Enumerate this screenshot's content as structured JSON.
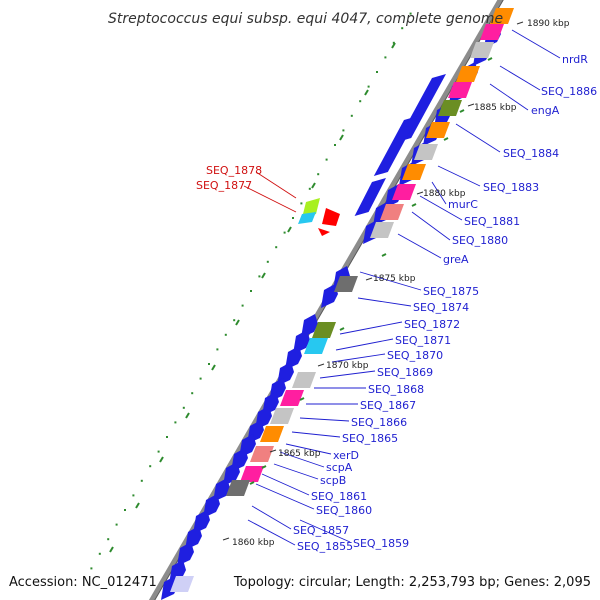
{
  "title": "Streptococcus equi subsp. equi 4047, complete genome",
  "accession": "Accession: NC_012471",
  "summary": "Topology: circular; Length: 2,253,793 bp; Genes: 2,095",
  "colors": {
    "backbone": "#8c8c8c",
    "cds": "#1f1fe0",
    "label_default": "#1f1fd0",
    "label_alt": "#d01010",
    "ruler_dot": "#2e8b2e",
    "orange": "#ff8c00",
    "magenta": "#ff1ea0",
    "gray": "#c4c4c4",
    "olive": "#6b8e23",
    "cyan": "#27c8f0",
    "pink": "#f08080",
    "lime": "#a8f020",
    "red": "#ff0000",
    "darkgray": "#6e6e6e",
    "lavender": "#cfd0f6"
  },
  "kbp_marks": [
    "1890 kbp",
    "1885 kbp",
    "1880 kbp",
    "1875 kbp",
    "1870 kbp",
    "1865 kbp",
    "1860 kbp"
  ],
  "gene_labels": [
    {
      "text": "nrdR",
      "color": "label_default"
    },
    {
      "text": "SEQ_1886",
      "color": "label_default"
    },
    {
      "text": "engA",
      "color": "label_default"
    },
    {
      "text": "SEQ_1884",
      "color": "label_default"
    },
    {
      "text": "SEQ_1883",
      "color": "label_default"
    },
    {
      "text": "murC",
      "color": "label_default"
    },
    {
      "text": "SEQ_1881",
      "color": "label_default"
    },
    {
      "text": "SEQ_1880",
      "color": "label_default"
    },
    {
      "text": "greA",
      "color": "label_default"
    },
    {
      "text": "SEQ_1878",
      "color": "label_alt"
    },
    {
      "text": "SEQ_1877",
      "color": "label_alt"
    },
    {
      "text": "SEQ_1875",
      "color": "label_default"
    },
    {
      "text": "SEQ_1874",
      "color": "label_default"
    },
    {
      "text": "SEQ_1872",
      "color": "label_default"
    },
    {
      "text": "SEQ_1871",
      "color": "label_default"
    },
    {
      "text": "SEQ_1870",
      "color": "label_default"
    },
    {
      "text": "SEQ_1869",
      "color": "label_default"
    },
    {
      "text": "SEQ_1868",
      "color": "label_default"
    },
    {
      "text": "SEQ_1867",
      "color": "label_default"
    },
    {
      "text": "SEQ_1866",
      "color": "label_default"
    },
    {
      "text": "SEQ_1865",
      "color": "label_default"
    },
    {
      "text": "xerD",
      "color": "label_default"
    },
    {
      "text": "scpA",
      "color": "label_default"
    },
    {
      "text": "scpB",
      "color": "label_default"
    },
    {
      "text": "SEQ_1861",
      "color": "label_default"
    },
    {
      "text": "SEQ_1860",
      "color": "label_default"
    },
    {
      "text": "SEQ_1859",
      "color": "label_default"
    },
    {
      "text": "SEQ_1857",
      "color": "label_default"
    },
    {
      "text": "SEQ_1855",
      "color": "label_default"
    }
  ],
  "rna_features": [
    {
      "color": "orange"
    },
    {
      "color": "magenta"
    },
    {
      "color": "gray"
    },
    {
      "color": "orange"
    },
    {
      "color": "magenta"
    },
    {
      "color": "olive"
    },
    {
      "color": "orange"
    },
    {
      "color": "gray"
    },
    {
      "color": "orange"
    },
    {
      "color": "magenta"
    },
    {
      "color": "pink"
    },
    {
      "color": "gray"
    },
    {
      "color": "darkgray"
    },
    {
      "color": "olive"
    },
    {
      "color": "cyan"
    },
    {
      "color": "gray"
    },
    {
      "color": "magenta"
    },
    {
      "color": "gray"
    },
    {
      "color": "orange"
    },
    {
      "color": "pink"
    },
    {
      "color": "magenta"
    },
    {
      "color": "darkgray"
    },
    {
      "color": "lavender"
    }
  ]
}
